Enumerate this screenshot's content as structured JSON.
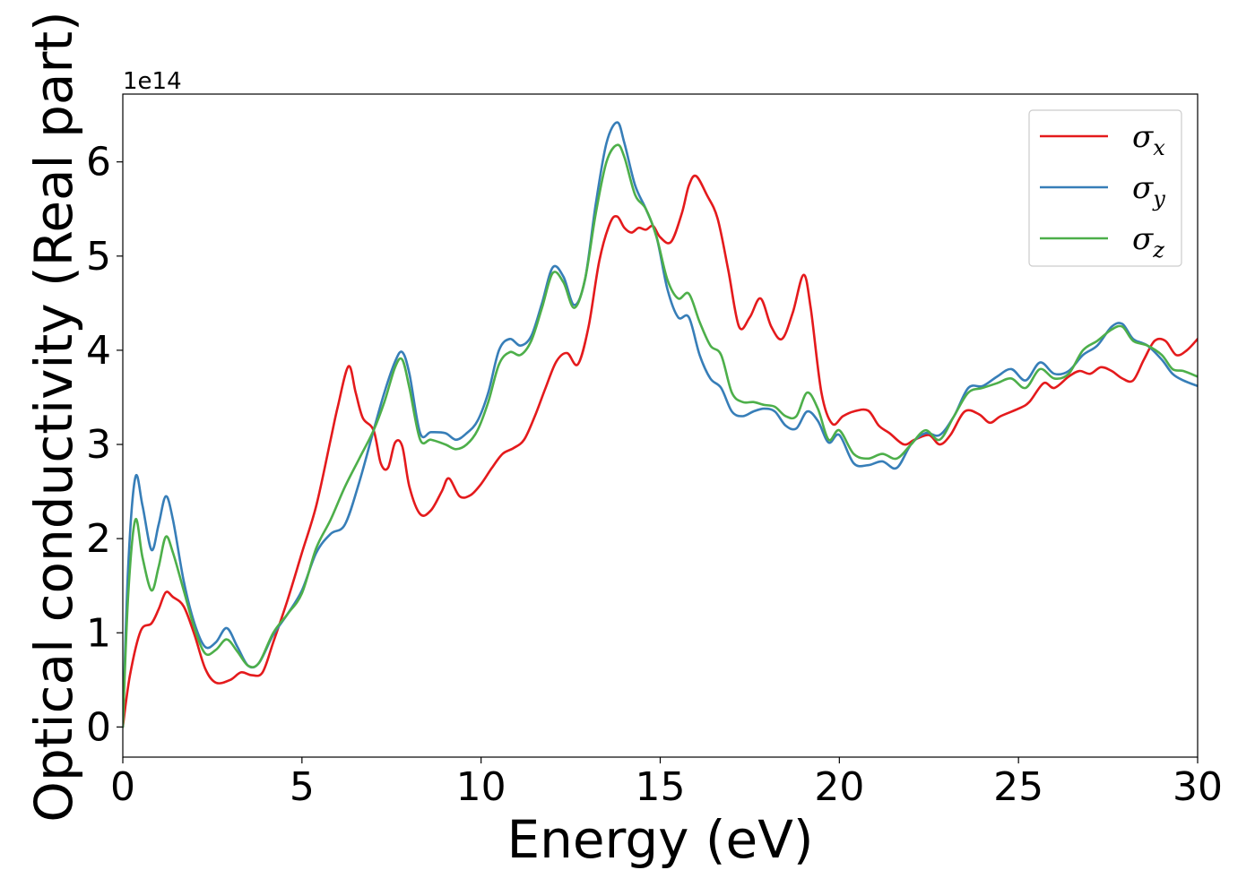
{
  "chart_data": {
    "type": "line",
    "title": "",
    "xlabel": "Energy (eV)",
    "ylabel": "Optical conductivity (Real part)",
    "y_offset_text": "1e14",
    "y_scale_factor": 100000000000000.0,
    "xlim": [
      0,
      30
    ],
    "ylim": [
      -0.32,
      6.72
    ],
    "xticks": [
      0,
      5,
      10,
      15,
      20,
      25,
      30
    ],
    "yticks": [
      0,
      1,
      2,
      3,
      4,
      5,
      6
    ],
    "grid": false,
    "legend_position": "top-right",
    "series": [
      {
        "name": "σx",
        "label_base": "σ",
        "label_sub": "x",
        "color": "#e41a1c",
        "x": [
          0,
          0.2,
          0.5,
          0.8,
          1.0,
          1.2,
          1.4,
          1.7,
          2.0,
          2.3,
          2.6,
          3.0,
          3.3,
          3.6,
          3.9,
          4.2,
          4.6,
          5.0,
          5.4,
          5.8,
          6.0,
          6.3,
          6.5,
          6.7,
          7.0,
          7.2,
          7.4,
          7.6,
          7.8,
          8.0,
          8.3,
          8.6,
          8.9,
          9.1,
          9.4,
          9.7,
          10.0,
          10.3,
          10.6,
          10.9,
          11.2,
          11.5,
          11.8,
          12.1,
          12.4,
          12.7,
          13.0,
          13.3,
          13.6,
          13.8,
          14.0,
          14.2,
          14.4,
          14.6,
          14.8,
          15.0,
          15.3,
          15.6,
          15.8,
          16.0,
          16.3,
          16.6,
          16.9,
          17.2,
          17.5,
          17.8,
          18.1,
          18.4,
          18.7,
          19.0,
          19.2,
          19.5,
          19.8,
          20.1,
          20.4,
          20.8,
          21.1,
          21.4,
          21.8,
          22.1,
          22.5,
          22.8,
          23.1,
          23.5,
          23.9,
          24.2,
          24.5,
          25.0,
          25.3,
          25.7,
          26.0,
          26.4,
          26.7,
          27.0,
          27.3,
          27.6,
          27.9,
          28.2,
          28.5,
          28.8,
          29.1,
          29.4,
          29.7,
          30.0
        ],
        "values": [
          0.0,
          0.55,
          1.02,
          1.1,
          1.25,
          1.43,
          1.38,
          1.28,
          0.98,
          0.62,
          0.47,
          0.5,
          0.58,
          0.55,
          0.58,
          0.9,
          1.35,
          1.85,
          2.35,
          3.05,
          3.4,
          3.83,
          3.55,
          3.28,
          3.15,
          2.8,
          2.75,
          3.02,
          2.98,
          2.55,
          2.26,
          2.3,
          2.5,
          2.64,
          2.45,
          2.46,
          2.58,
          2.75,
          2.9,
          2.96,
          3.05,
          3.3,
          3.6,
          3.88,
          3.97,
          3.85,
          4.25,
          4.95,
          5.35,
          5.42,
          5.3,
          5.25,
          5.3,
          5.28,
          5.32,
          5.2,
          5.15,
          5.45,
          5.75,
          5.85,
          5.65,
          5.4,
          4.85,
          4.25,
          4.35,
          4.55,
          4.25,
          4.12,
          4.4,
          4.8,
          4.45,
          3.55,
          3.22,
          3.3,
          3.35,
          3.36,
          3.2,
          3.12,
          3.0,
          3.05,
          3.1,
          3.0,
          3.1,
          3.35,
          3.32,
          3.23,
          3.3,
          3.38,
          3.45,
          3.65,
          3.6,
          3.72,
          3.78,
          3.75,
          3.82,
          3.78,
          3.7,
          3.68,
          3.9,
          4.1,
          4.1,
          3.95,
          4.0,
          4.12
        ]
      },
      {
        "name": "σy",
        "label_base": "σ",
        "label_sub": "y",
        "color": "#377eb8",
        "x": [
          0,
          0.15,
          0.35,
          0.55,
          0.8,
          1.0,
          1.2,
          1.4,
          1.7,
          2.0,
          2.3,
          2.6,
          2.9,
          3.2,
          3.5,
          3.8,
          4.2,
          4.6,
          5.0,
          5.4,
          5.8,
          6.2,
          6.6,
          7.0,
          7.3,
          7.6,
          7.8,
          8.0,
          8.3,
          8.6,
          9.0,
          9.3,
          9.6,
          9.9,
          10.2,
          10.5,
          10.8,
          11.1,
          11.4,
          11.7,
          12.0,
          12.3,
          12.6,
          12.9,
          13.2,
          13.5,
          13.8,
          14.0,
          14.3,
          14.6,
          14.9,
          15.2,
          15.5,
          15.8,
          16.1,
          16.4,
          16.7,
          17.0,
          17.3,
          17.6,
          17.9,
          18.2,
          18.5,
          18.8,
          19.1,
          19.4,
          19.7,
          20.0,
          20.4,
          20.8,
          21.2,
          21.6,
          22.0,
          22.4,
          22.8,
          23.2,
          23.6,
          24.0,
          24.4,
          24.8,
          25.2,
          25.6,
          26.0,
          26.4,
          26.8,
          27.2,
          27.6,
          27.9,
          28.2,
          28.6,
          29.0,
          29.3,
          29.6,
          30.0
        ],
        "values": [
          0.0,
          1.7,
          2.65,
          2.35,
          1.88,
          2.15,
          2.45,
          2.2,
          1.55,
          1.1,
          0.85,
          0.9,
          1.05,
          0.85,
          0.65,
          0.68,
          0.98,
          1.2,
          1.45,
          1.85,
          2.05,
          2.15,
          2.6,
          3.15,
          3.55,
          3.88,
          3.98,
          3.75,
          3.12,
          3.13,
          3.12,
          3.05,
          3.12,
          3.25,
          3.55,
          4.0,
          4.12,
          4.05,
          4.15,
          4.5,
          4.88,
          4.78,
          4.48,
          4.75,
          5.55,
          6.2,
          6.42,
          6.2,
          5.75,
          5.5,
          5.2,
          4.65,
          4.35,
          4.35,
          3.95,
          3.7,
          3.6,
          3.35,
          3.3,
          3.35,
          3.38,
          3.35,
          3.2,
          3.17,
          3.35,
          3.25,
          3.02,
          3.1,
          2.8,
          2.78,
          2.82,
          2.75,
          3.0,
          3.12,
          3.1,
          3.3,
          3.6,
          3.62,
          3.72,
          3.8,
          3.68,
          3.87,
          3.75,
          3.78,
          3.95,
          4.05,
          4.25,
          4.28,
          4.12,
          4.05,
          3.9,
          3.75,
          3.68,
          3.62
        ]
      },
      {
        "name": "σz",
        "label_base": "σ",
        "label_sub": "z",
        "color": "#4daf4a",
        "x": [
          0,
          0.15,
          0.35,
          0.55,
          0.8,
          1.0,
          1.2,
          1.4,
          1.7,
          2.0,
          2.3,
          2.6,
          2.9,
          3.2,
          3.5,
          3.8,
          4.2,
          4.6,
          5.0,
          5.4,
          5.8,
          6.2,
          6.6,
          7.0,
          7.3,
          7.6,
          7.8,
          8.0,
          8.3,
          8.6,
          9.0,
          9.3,
          9.6,
          9.9,
          10.2,
          10.5,
          10.8,
          11.1,
          11.4,
          11.7,
          12.0,
          12.3,
          12.6,
          12.9,
          13.2,
          13.5,
          13.8,
          14.0,
          14.3,
          14.6,
          14.9,
          15.2,
          15.5,
          15.8,
          16.1,
          16.4,
          16.7,
          17.0,
          17.3,
          17.6,
          17.9,
          18.2,
          18.5,
          18.8,
          19.1,
          19.4,
          19.7,
          20.0,
          20.4,
          20.8,
          21.2,
          21.6,
          22.0,
          22.4,
          22.8,
          23.2,
          23.6,
          24.0,
          24.4,
          24.8,
          25.2,
          25.6,
          26.0,
          26.4,
          26.8,
          27.2,
          27.6,
          27.9,
          28.2,
          28.6,
          29.0,
          29.3,
          29.6,
          30.0
        ],
        "values": [
          0.0,
          1.4,
          2.2,
          1.8,
          1.45,
          1.7,
          2.02,
          1.85,
          1.45,
          1.05,
          0.78,
          0.82,
          0.93,
          0.8,
          0.65,
          0.68,
          1.0,
          1.2,
          1.42,
          1.9,
          2.2,
          2.55,
          2.85,
          3.15,
          3.45,
          3.82,
          3.9,
          3.6,
          3.05,
          3.05,
          3.0,
          2.95,
          3.0,
          3.15,
          3.45,
          3.85,
          3.98,
          3.95,
          4.1,
          4.45,
          4.82,
          4.72,
          4.45,
          4.75,
          5.45,
          6.0,
          6.18,
          6.05,
          5.65,
          5.5,
          5.2,
          4.75,
          4.55,
          4.6,
          4.3,
          4.05,
          3.95,
          3.55,
          3.45,
          3.45,
          3.42,
          3.4,
          3.3,
          3.3,
          3.55,
          3.38,
          3.05,
          3.15,
          2.9,
          2.85,
          2.9,
          2.85,
          3.0,
          3.15,
          3.05,
          3.3,
          3.55,
          3.6,
          3.65,
          3.7,
          3.6,
          3.8,
          3.7,
          3.75,
          4.0,
          4.1,
          4.22,
          4.25,
          4.1,
          4.05,
          3.95,
          3.8,
          3.78,
          3.72
        ]
      }
    ]
  }
}
